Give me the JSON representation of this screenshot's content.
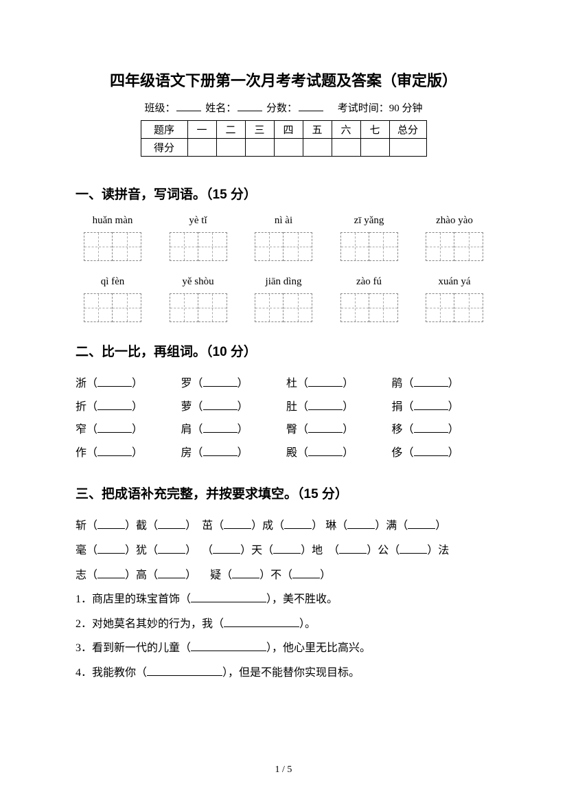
{
  "title": "四年级语文下册第一次月考考试题及答案（审定版）",
  "info": {
    "class_label": "班级：",
    "name_label": "姓名：",
    "score_label": "分数：",
    "exam_time": "考试时间：90 分钟"
  },
  "score_table": {
    "row1_label": "题序",
    "row2_label": "得分",
    "cols": [
      "一",
      "二",
      "三",
      "四",
      "五",
      "六",
      "七"
    ],
    "total": "总分"
  },
  "sec1": {
    "title": "一、读拼音，写词语。（15 分）",
    "row1": [
      "huǎn màn",
      "yè tǐ",
      "nì ài",
      "zī yǎng",
      "zhào yào"
    ],
    "row2": [
      "qì fèn",
      "yě shòu",
      "jiān dìng",
      "zào fú",
      "xuán yá"
    ]
  },
  "sec2": {
    "title": "二、比一比，再组词。（10 分）",
    "rows": [
      [
        "浙",
        "罗",
        "杜",
        "鹃"
      ],
      [
        "折",
        "萝",
        "肚",
        "捐"
      ],
      [
        "窄",
        "肩",
        "臀",
        "移"
      ],
      [
        "作",
        "房",
        "殿",
        "侈"
      ]
    ]
  },
  "sec3": {
    "title": "三、把成语补充完整，并按要求填空。（15 分）",
    "line1": {
      "a": "斩",
      "b": "截",
      "c": "茁",
      "d": "成",
      "e": "琳",
      "f": "满"
    },
    "line2": {
      "a": "毫",
      "b": "犹",
      "c": "天",
      "d": "地",
      "e": "公",
      "f": "法"
    },
    "line3": {
      "a": "志",
      "b": "高",
      "c": "疑",
      "d": "不"
    },
    "q1": "1．商店里的珠宝首饰（",
    "q1_end": "），美不胜收。",
    "q2": "2．对她莫名其妙的行为，我（",
    "q2_end": "）。",
    "q3": "3．看到新一代的儿童（",
    "q3_end": "），他心里无比高兴。",
    "q4": "4．我能教你（",
    "q4_end": "），但是不能替你实现目标。"
  },
  "page_num": "1 / 5"
}
